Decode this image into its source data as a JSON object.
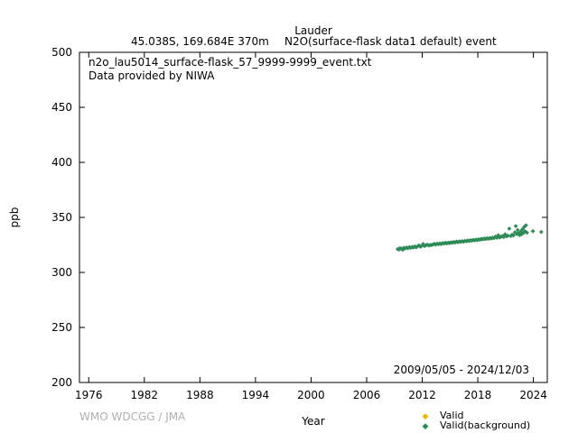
{
  "header": {
    "station": "Lauder",
    "location": "45.038S, 169.684E 370m",
    "series_title": "N2O(surface-flask data1 default) event"
  },
  "inset": {
    "filename": "n2o_lau5014_surface-flask_57_9999-9999_event.txt",
    "provider": "Data provided by NIWA",
    "date_range": "2009/05/05 - 2024/12/03"
  },
  "credit": "WMO WDCGG / JMA",
  "colors": {
    "valid": "#e6b800",
    "background": "#2e8b57"
  },
  "chart_data": {
    "type": "scatter",
    "xlabel": "Year",
    "ylabel": "ppb",
    "xlim": [
      1975,
      2025.5
    ],
    "ylim": [
      200,
      500
    ],
    "xticks": [
      1976,
      1982,
      1988,
      1994,
      2000,
      2006,
      2012,
      2018,
      2024
    ],
    "yticks": [
      200,
      250,
      300,
      350,
      400,
      450,
      500
    ],
    "grid": false,
    "legend_position": "bottom-right",
    "series": [
      {
        "name": "Valid",
        "color": "#e6b800",
        "points": []
      },
      {
        "name": "Valid(background)",
        "color": "#2e8b57",
        "points": [
          [
            2009.35,
            321.2
          ],
          [
            2009.5,
            320.8
          ],
          [
            2009.6,
            322.0
          ],
          [
            2009.75,
            321.5
          ],
          [
            2009.9,
            320.6
          ],
          [
            2010.0,
            322.3
          ],
          [
            2010.15,
            321.8
          ],
          [
            2010.3,
            322.6
          ],
          [
            2010.45,
            321.9
          ],
          [
            2010.6,
            323.0
          ],
          [
            2010.75,
            322.4
          ],
          [
            2010.9,
            323.1
          ],
          [
            2011.05,
            322.7
          ],
          [
            2011.2,
            323.5
          ],
          [
            2011.35,
            322.9
          ],
          [
            2011.5,
            323.8
          ],
          [
            2011.65,
            324.6
          ],
          [
            2011.8,
            323.4
          ],
          [
            2011.95,
            324.1
          ],
          [
            2012.1,
            325.8
          ],
          [
            2012.25,
            324.0
          ],
          [
            2012.4,
            324.7
          ],
          [
            2012.55,
            325.2
          ],
          [
            2012.7,
            324.5
          ],
          [
            2012.85,
            325.0
          ],
          [
            2013.0,
            324.8
          ],
          [
            2013.15,
            325.4
          ],
          [
            2013.3,
            325.9
          ],
          [
            2013.45,
            325.3
          ],
          [
            2013.6,
            326.1
          ],
          [
            2013.75,
            325.6
          ],
          [
            2013.9,
            326.3
          ],
          [
            2014.05,
            325.8
          ],
          [
            2014.2,
            326.6
          ],
          [
            2014.35,
            326.2
          ],
          [
            2014.5,
            326.9
          ],
          [
            2014.65,
            326.4
          ],
          [
            2014.8,
            327.0
          ],
          [
            2014.95,
            326.7
          ],
          [
            2015.1,
            327.3
          ],
          [
            2015.25,
            327.0
          ],
          [
            2015.4,
            327.6
          ],
          [
            2015.55,
            327.2
          ],
          [
            2015.7,
            327.9
          ],
          [
            2015.85,
            327.5
          ],
          [
            2016.0,
            328.1
          ],
          [
            2016.15,
            327.8
          ],
          [
            2016.3,
            328.4
          ],
          [
            2016.45,
            328.0
          ],
          [
            2016.6,
            328.7
          ],
          [
            2016.75,
            328.3
          ],
          [
            2016.9,
            329.0
          ],
          [
            2017.05,
            328.6
          ],
          [
            2017.2,
            329.2
          ],
          [
            2017.35,
            328.9
          ],
          [
            2017.5,
            329.5
          ],
          [
            2017.65,
            329.1
          ],
          [
            2017.8,
            329.8
          ],
          [
            2017.95,
            329.4
          ],
          [
            2018.1,
            330.0
          ],
          [
            2018.25,
            329.7
          ],
          [
            2018.4,
            330.5
          ],
          [
            2018.55,
            330.1
          ],
          [
            2018.7,
            330.8
          ],
          [
            2018.85,
            330.3
          ],
          [
            2019.0,
            331.0
          ],
          [
            2019.15,
            330.6
          ],
          [
            2019.3,
            331.3
          ],
          [
            2019.45,
            330.9
          ],
          [
            2019.6,
            331.6
          ],
          [
            2019.75,
            331.2
          ],
          [
            2019.9,
            332.5
          ],
          [
            2020.05,
            331.5
          ],
          [
            2020.2,
            333.8
          ],
          [
            2020.35,
            331.8
          ],
          [
            2020.5,
            332.4
          ],
          [
            2020.65,
            333.0
          ],
          [
            2020.8,
            332.2
          ],
          [
            2020.95,
            334.6
          ],
          [
            2021.1,
            332.8
          ],
          [
            2021.25,
            333.4
          ],
          [
            2021.4,
            339.8
          ],
          [
            2021.55,
            333.1
          ],
          [
            2021.7,
            334.2
          ],
          [
            2021.85,
            333.6
          ],
          [
            2022.0,
            336.5
          ],
          [
            2022.1,
            342.1
          ],
          [
            2022.2,
            334.9
          ],
          [
            2022.3,
            338.5
          ],
          [
            2022.4,
            335.3
          ],
          [
            2022.5,
            333.9
          ],
          [
            2022.6,
            336.8
          ],
          [
            2022.7,
            334.6
          ],
          [
            2022.8,
            339.0
          ],
          [
            2022.9,
            335.7
          ],
          [
            2023.0,
            341.2
          ],
          [
            2023.1,
            337.4
          ],
          [
            2023.2,
            342.8
          ],
          [
            2023.3,
            336.1
          ],
          [
            2023.95,
            337.5
          ],
          [
            2024.85,
            336.8
          ]
        ]
      }
    ]
  }
}
